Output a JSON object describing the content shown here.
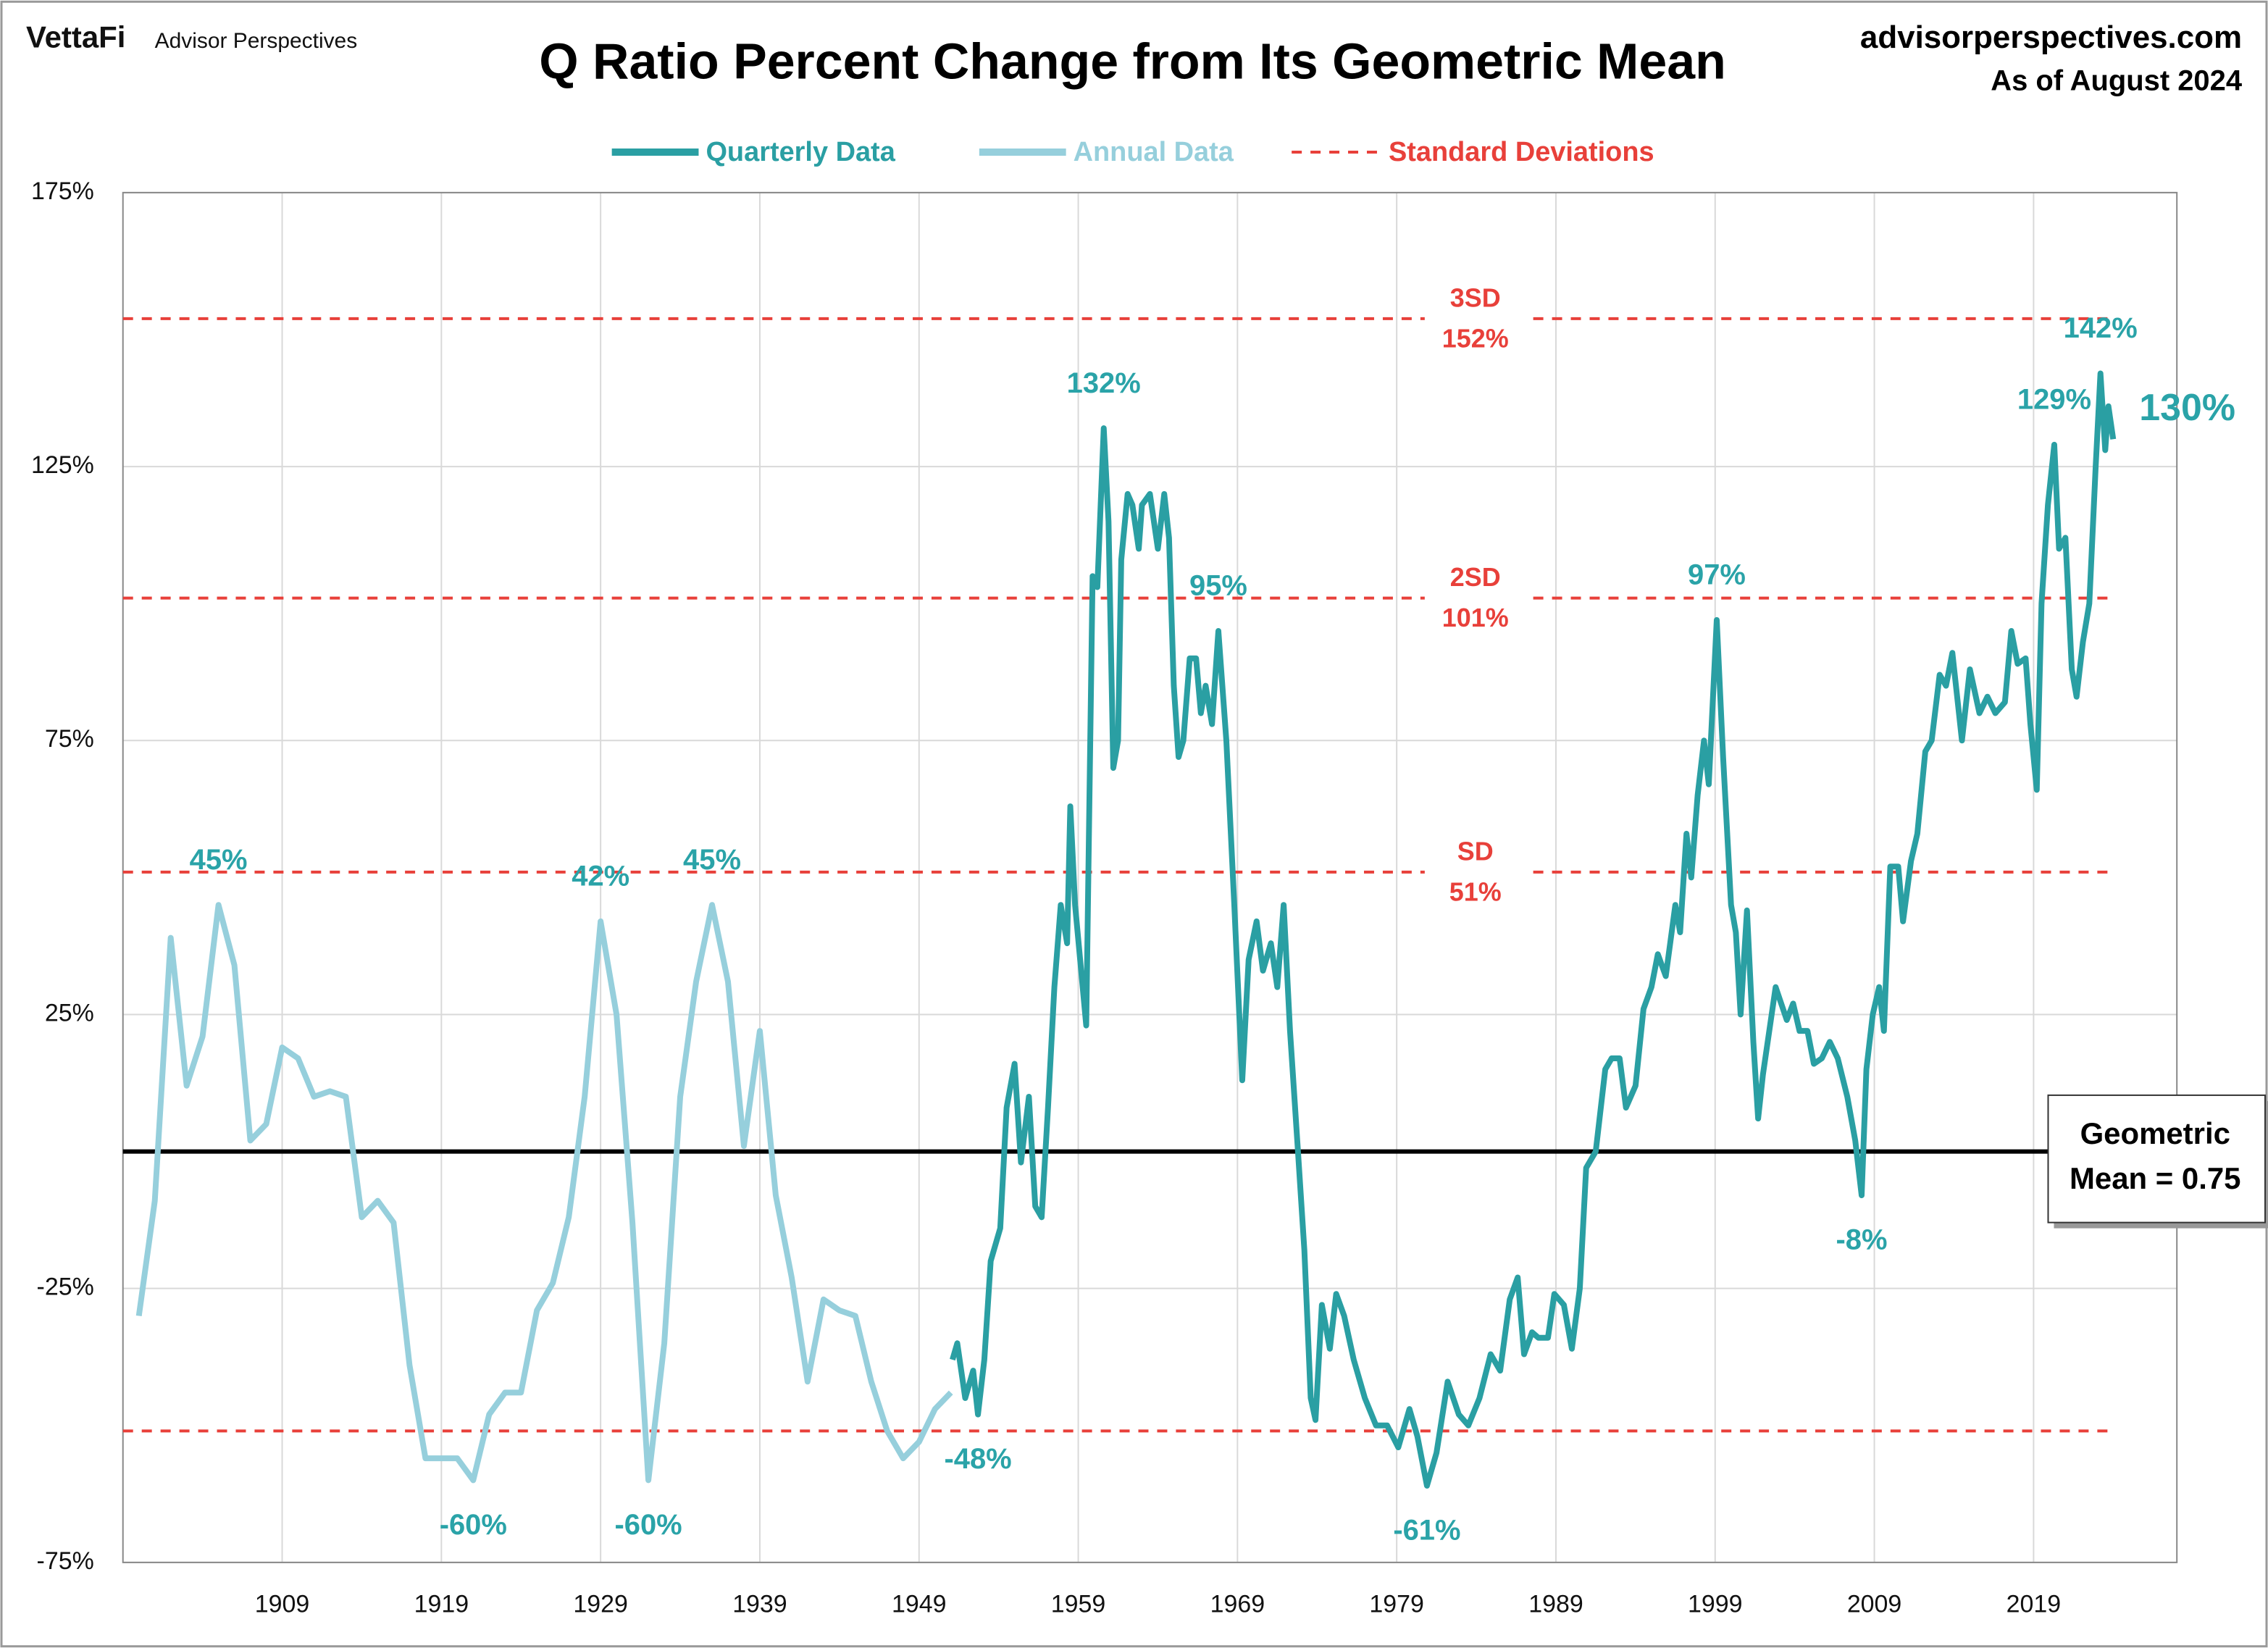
{
  "header": {
    "logo": "VettaFi",
    "brand": "Advisor Perspectives",
    "site": "advisorperspectives.com",
    "date": "As of August 2024"
  },
  "chart_data": {
    "type": "line",
    "title": "Q Ratio Percent Change from Its Geometric Mean",
    "xlim": [
      1899,
      2028
    ],
    "xticks": [
      1909,
      1919,
      1929,
      1939,
      1949,
      1959,
      1969,
      1979,
      1989,
      1999,
      2009,
      2019
    ],
    "ylim": [
      -75,
      175
    ],
    "yticks": [
      {
        "value": -75,
        "label": "-75%"
      },
      {
        "value": -25,
        "label": "-25%"
      },
      {
        "value": 25,
        "label": "25%"
      },
      {
        "value": 75,
        "label": "75%"
      },
      {
        "value": 125,
        "label": "125%"
      },
      {
        "value": 175,
        "label": "175%"
      }
    ],
    "grid": true,
    "series": [
      {
        "name": "Quarterly Data",
        "color": "#2a9fa3",
        "x": [
          1951.1,
          1951.4,
          1951.9,
          1952.4,
          1952.7,
          1953.1,
          1953.5,
          1954.1,
          1954.5,
          1955.0,
          1955.4,
          1955.9,
          1956.3,
          1956.7,
          1957.1,
          1957.5,
          1957.9,
          1958.3,
          1958.5,
          1958.8,
          1959.5,
          1959.9,
          1960.2,
          1960.6,
          1960.9,
          1961.2,
          1961.5,
          1961.7,
          1962.1,
          1962.4,
          1962.8,
          1963.0,
          1963.5,
          1964.0,
          1964.4,
          1964.7,
          1965.0,
          1965.3,
          1965.6,
          1966.0,
          1966.4,
          1966.7,
          1967.0,
          1967.4,
          1967.8,
          1968.3,
          1968.8,
          1969.3,
          1969.7,
          1970.2,
          1970.6,
          1971.1,
          1971.5,
          1971.9,
          1972.3,
          1972.8,
          1973.2,
          1973.6,
          1973.9,
          1974.3,
          1974.8,
          1975.2,
          1975.7,
          1976.3,
          1977.0,
          1977.7,
          1978.4,
          1979.1,
          1979.8,
          1980.3,
          1980.9,
          1981.5,
          1982.2,
          1982.9,
          1983.5,
          1984.2,
          1984.9,
          1985.5,
          1986.1,
          1986.6,
          1987.0,
          1987.5,
          1987.9,
          1988.5,
          1988.9,
          1989.5,
          1990.0,
          1990.5,
          1990.9,
          1991.5,
          1992.1,
          1992.5,
          1993.0,
          1993.4,
          1994.0,
          1994.5,
          1995.0,
          1995.4,
          1995.9,
          1996.5,
          1996.8,
          1997.2,
          1997.5,
          1997.9,
          1998.3,
          1998.6,
          1999.1,
          1999.5,
          2000.0,
          2000.3,
          2000.6,
          2001.0,
          2001.4,
          2001.7,
          2002.0,
          2002.4,
          2002.8,
          2003.5,
          2003.9,
          2004.3,
          2004.8,
          2005.2,
          2005.7,
          2006.2,
          2006.7,
          2007.3,
          2007.8,
          2008.2,
          2008.5,
          2008.9,
          2009.3,
          2009.6,
          2010.0,
          2010.5,
          2010.8,
          2011.3,
          2011.7,
          2012.2,
          2012.6,
          2013.1,
          2013.5,
          2013.9,
          2014.5,
          2015.0,
          2015.6,
          2016.1,
          2016.6,
          2017.2,
          2017.6,
          2018.0,
          2018.5,
          2018.8,
          2019.2,
          2019.5,
          2019.9,
          2020.3,
          2020.6,
          2021.0,
          2021.4,
          2021.7,
          2022.1,
          2022.5,
          2022.9,
          2023.2,
          2023.5,
          2023.7,
          2024.0
        ],
        "values": [
          -38,
          -35,
          -45,
          -40,
          -48,
          -38,
          -20,
          -14,
          8,
          16,
          -2,
          10,
          -10,
          -12,
          8,
          30,
          45,
          38,
          63,
          45,
          23,
          105,
          103,
          132,
          115,
          70,
          75,
          108,
          120,
          118,
          110,
          118,
          120,
          110,
          120,
          112,
          85,
          72,
          75,
          90,
          90,
          80,
          85,
          78,
          95,
          75,
          45,
          13,
          35,
          42,
          33,
          38,
          30,
          45,
          22,
          0,
          -18,
          -45,
          -49,
          -28,
          -36,
          -26,
          -30,
          -38,
          -45,
          -50,
          -50,
          -54,
          -47,
          -52,
          -61,
          -55,
          -42,
          -48,
          -50,
          -45,
          -37,
          -40,
          -27,
          -23,
          -37,
          -33,
          -34,
          -34,
          -26,
          -28,
          -36,
          -25,
          -3,
          0,
          15,
          17,
          17,
          8,
          12,
          26,
          30,
          36,
          32,
          45,
          40,
          58,
          50,
          65,
          75,
          67,
          97,
          72,
          45,
          40,
          25,
          44,
          20,
          6,
          14,
          22,
          30,
          24,
          27,
          22,
          22,
          16,
          17,
          20,
          17,
          10,
          2,
          -8,
          15,
          25,
          30,
          22,
          52,
          52,
          42,
          53,
          58,
          73,
          75,
          87,
          85,
          91,
          75,
          88,
          80,
          83,
          80,
          82,
          95,
          89,
          90,
          78,
          66,
          100,
          118,
          129,
          110,
          112,
          88,
          83,
          93,
          100,
          125,
          142,
          128,
          136,
          130
        ]
      },
      {
        "name": "Annual Data",
        "color": "#96cfdc",
        "x": [
          1900,
          1901,
          1902,
          1903,
          1904,
          1905,
          1906,
          1907,
          1908,
          1909,
          1910,
          1911,
          1912,
          1913,
          1914,
          1915,
          1916,
          1917,
          1918,
          1919,
          1920,
          1921,
          1922,
          1923,
          1924,
          1925,
          1926,
          1927,
          1928,
          1929,
          1930,
          1931,
          1932,
          1933,
          1934,
          1935,
          1936,
          1937,
          1938,
          1939,
          1940,
          1941,
          1942,
          1943,
          1944,
          1945,
          1946,
          1947,
          1948,
          1949,
          1950,
          1951
        ],
        "values": [
          -30,
          -9,
          39,
          12,
          21,
          45,
          34,
          2,
          5,
          19,
          17,
          10,
          11,
          10,
          -12,
          -9,
          -13,
          -39,
          -56,
          -56,
          -56,
          -60,
          -48,
          -44,
          -44,
          -29,
          -24,
          -12,
          10,
          42,
          25,
          -13,
          -60,
          -35,
          10,
          31,
          45,
          31,
          1,
          22,
          -8,
          -23,
          -42,
          -27,
          -29,
          -30,
          -42,
          -51,
          -56,
          -53,
          -47,
          -44
        ]
      }
    ],
    "sd_legend": "Standard Deviations",
    "sd_color": "#e8403a",
    "sd_lines": [
      {
        "name": "3SD",
        "value": 152,
        "label": "152%"
      },
      {
        "name": "2SD",
        "value": 101,
        "label": "101%"
      },
      {
        "name": "SD",
        "value": 51,
        "label": "51%"
      },
      {
        "value": -51
      }
    ],
    "mean": {
      "value": 0,
      "label": [
        "Geometric",
        "Mean = 0.75"
      ]
    },
    "annotations": [
      {
        "label": "45%",
        "x": 1905,
        "y": 45
      },
      {
        "label": "42%",
        "x": 1929,
        "y": 42
      },
      {
        "label": "45%",
        "x": 1936,
        "y": 45
      },
      {
        "label": "-60%",
        "x": 1921,
        "y": -60
      },
      {
        "label": "-60%",
        "x": 1932,
        "y": -60
      },
      {
        "label": "-48%",
        "x": 1952.7,
        "y": -48
      },
      {
        "label": "132%",
        "x": 1960.6,
        "y": 132
      },
      {
        "label": "95%",
        "x": 1967.8,
        "y": 95
      },
      {
        "label": "-61%",
        "x": 1980.9,
        "y": -61
      },
      {
        "label": "97%",
        "x": 1999.1,
        "y": 97
      },
      {
        "label": "-8%",
        "x": 2008.2,
        "y": -8
      },
      {
        "label": "129%",
        "x": 2020.3,
        "y": 129
      },
      {
        "label": "142%",
        "x": 2023.2,
        "y": 142
      },
      {
        "label": "130%",
        "x": 2024.0,
        "y": 130
      }
    ]
  }
}
